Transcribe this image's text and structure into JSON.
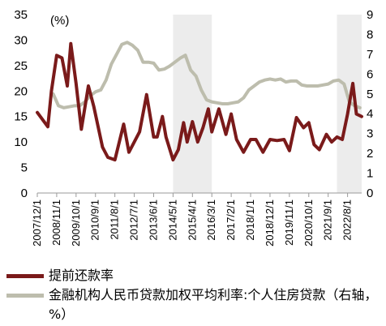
{
  "chart_data": {
    "type": "line",
    "x_ticks": [
      "2007/12/1",
      "2008/11/1",
      "2009/10/1",
      "2010/9/1",
      "2011/8/1",
      "2012/7/1",
      "2013/6/1",
      "2014/5/1",
      "2015/4/1",
      "2016/3/1",
      "2017/2/1",
      "2018/1/1",
      "2018/12/1",
      "2019/11/1",
      "2020/10/1",
      "2021/9/1",
      "2022/8/1"
    ],
    "ylim_left": [
      0,
      35
    ],
    "yticks_left": [
      0,
      5,
      10,
      15,
      20,
      25,
      30,
      35
    ],
    "ylim_right": [
      0,
      9
    ],
    "yticks_right": [
      0,
      1,
      2,
      3,
      4,
      5,
      6,
      7,
      8,
      9
    ],
    "unit_label": "(%)",
    "shaded_periods": [
      {
        "start": "2014/5/1",
        "end": "2016/3/1"
      },
      {
        "start": "2022/2/1",
        "end": "2023/4/1"
      }
    ],
    "series": [
      {
        "name": "提前还款率",
        "axis": "left",
        "color": "#7a1a1a",
        "x": [
          "2007/12/1",
          "2008/6/1",
          "2008/8/1",
          "2008/11/1",
          "2009/2/1",
          "2009/5/1",
          "2009/7/1",
          "2009/10/1",
          "2010/1/1",
          "2010/5/1",
          "2010/8/1",
          "2011/1/1",
          "2011/4/1",
          "2011/8/1",
          "2012/1/1",
          "2012/4/1",
          "2012/7/1",
          "2012/10/1",
          "2013/2/1",
          "2013/6/1",
          "2013/8/1",
          "2013/11/1",
          "2014/1/1",
          "2014/5/1",
          "2014/8/1",
          "2014/11/1",
          "2015/1/1",
          "2015/4/1",
          "2015/7/1",
          "2015/10/1",
          "2016/1/1",
          "2016/3/1",
          "2016/7/1",
          "2016/11/1",
          "2017/2/1",
          "2017/5/1",
          "2017/9/1",
          "2018/1/1",
          "2018/4/1",
          "2018/8/1",
          "2018/12/1",
          "2019/4/1",
          "2019/8/1",
          "2019/11/1",
          "2020/3/1",
          "2020/7/1",
          "2020/10/1",
          "2021/1/1",
          "2021/4/1",
          "2021/8/1",
          "2021/11/1",
          "2022/2/1",
          "2022/5/1",
          "2022/8/1",
          "2022/11/1",
          "2023/1/1",
          "2023/4/1"
        ],
        "values": [
          15.8,
          13,
          20,
          27,
          26.5,
          21,
          29.3,
          21.5,
          12.5,
          21,
          17,
          9,
          7,
          6.5,
          13.5,
          8,
          10,
          12,
          19.3,
          11,
          11,
          15,
          11,
          6.5,
          8.5,
          13.8,
          10,
          14,
          10,
          12.8,
          16.5,
          12,
          16.5,
          11.5,
          15.5,
          10.5,
          8,
          10.5,
          10.5,
          8,
          10.5,
          10.3,
          10.5,
          8.3,
          14.8,
          12.8,
          13.8,
          9.5,
          8.5,
          11.5,
          10,
          11,
          10.5,
          15.5,
          21.5,
          15.5,
          15
        ]
      },
      {
        "name": "金融机构人民币贷款加权平均利率:个人住房贷款（右轴，%）",
        "axis": "right",
        "color": "#bdbdad",
        "x": [
          "2008/9/1",
          "2008/12/1",
          "2009/3/1",
          "2009/6/1",
          "2009/9/1",
          "2009/12/1",
          "2010/3/1",
          "2010/6/1",
          "2010/9/1",
          "2010/12/1",
          "2011/3/1",
          "2011/6/1",
          "2011/9/1",
          "2011/12/1",
          "2012/3/1",
          "2012/6/1",
          "2012/9/1",
          "2012/12/1",
          "2013/3/1",
          "2013/6/1",
          "2013/9/1",
          "2013/12/1",
          "2014/3/1",
          "2014/6/1",
          "2014/9/1",
          "2014/12/1",
          "2015/3/1",
          "2015/6/1",
          "2015/9/1",
          "2015/12/1",
          "2016/3/1",
          "2016/6/1",
          "2016/9/1",
          "2016/12/1",
          "2017/3/1",
          "2017/6/1",
          "2017/9/1",
          "2017/12/1",
          "2018/3/1",
          "2018/6/1",
          "2018/9/1",
          "2018/12/1",
          "2019/3/1",
          "2019/6/1",
          "2019/9/1",
          "2019/12/1",
          "2020/3/1",
          "2020/6/1",
          "2020/9/1",
          "2020/12/1",
          "2021/3/1",
          "2021/6/1",
          "2021/9/1",
          "2021/12/1",
          "2022/3/1",
          "2022/6/1",
          "2022/9/1",
          "2022/12/1",
          "2023/3/1"
        ],
        "values": [
          5,
          4.4,
          4.3,
          4.35,
          4.4,
          4.4,
          4.6,
          4.9,
          5.1,
          5.2,
          5.7,
          6.5,
          7,
          7.5,
          7.6,
          7.45,
          7.2,
          6.6,
          6.6,
          6.55,
          6.2,
          6.25,
          6.4,
          6.6,
          6.8,
          6.95,
          6.2,
          5.9,
          5.2,
          4.7,
          4.6,
          4.55,
          4.5,
          4.5,
          4.55,
          4.6,
          4.8,
          5.2,
          5.4,
          5.6,
          5.7,
          5.75,
          5.7,
          5.75,
          5.6,
          5.65,
          5.65,
          5.45,
          5.4,
          5.4,
          5.4,
          5.45,
          5.5,
          5.65,
          5.7,
          5.5,
          4.6,
          4.4,
          4.3
        ]
      }
    ]
  }
}
